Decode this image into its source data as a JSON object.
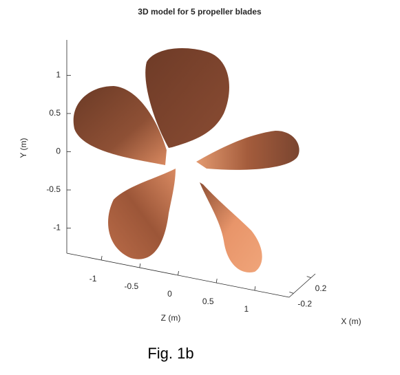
{
  "chart_data": {
    "type": "surface3d",
    "title": "3D model for 5 propeller blades",
    "xlabel": "X (m)",
    "ylabel": "Y (m)",
    "zlabel": "Z (m)",
    "xlim": [
      -0.3,
      0.3
    ],
    "xticks": [
      -0.2,
      0.2
    ],
    "ylim": [
      -1.4,
      1.4
    ],
    "yticks": [
      -1,
      -0.5,
      0,
      0.5,
      1
    ],
    "zlim": [
      -1.45,
      1.45
    ],
    "zticks": [
      -1,
      -0.5,
      0,
      0.5,
      1
    ],
    "color": "#b5643f"
  },
  "caption": "Fig. 1b"
}
